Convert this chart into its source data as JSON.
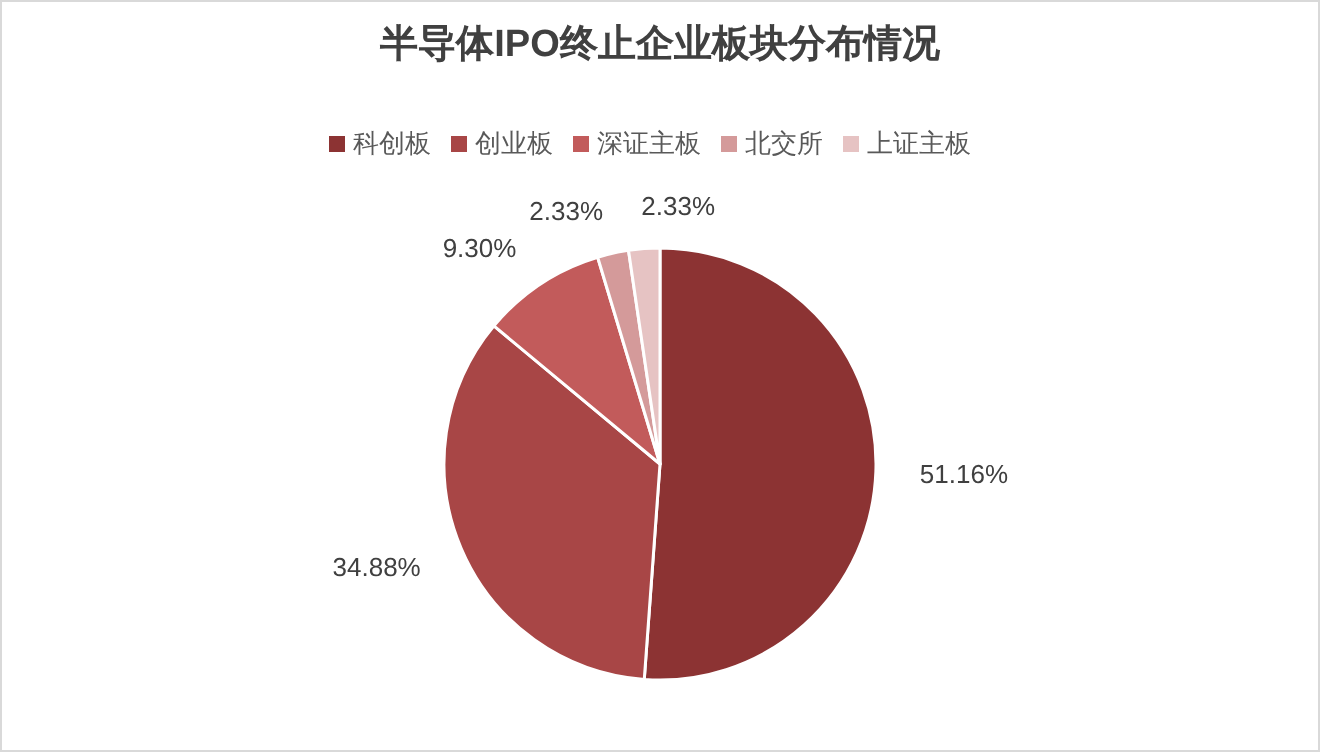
{
  "chart_data": {
    "type": "pie",
    "title": "半导体IPO终止企业板块分布情况",
    "categories": [
      "科创板",
      "创业板",
      "深证主板",
      "北交所",
      "上证主板"
    ],
    "values": [
      51.16,
      34.88,
      9.3,
      2.33,
      2.33
    ],
    "value_labels": [
      "51.16%",
      "34.88%",
      "9.30%",
      "2.33%",
      "2.33%"
    ],
    "colors": [
      "#8c3333",
      "#a84646",
      "#c25b5b",
      "#d49a9a",
      "#e6c3c3"
    ],
    "legend": "top"
  }
}
